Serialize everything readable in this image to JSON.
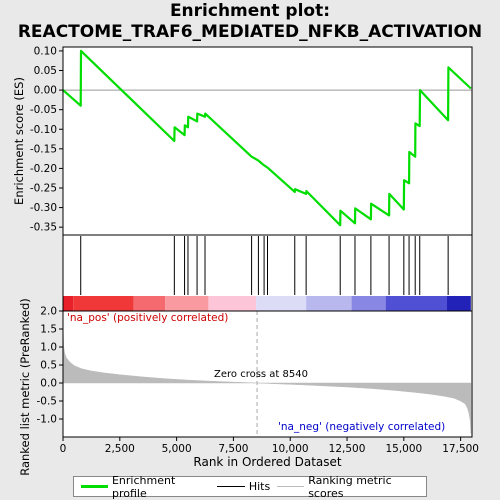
{
  "title_line1": "Enrichment plot:",
  "title_line2": "REACTOME_TRAF6_MEDIATED_NFKB_ACTIVATION",
  "chart_data": {
    "type": "line",
    "x_range": [
      0,
      18000
    ],
    "xlabel": "Rank in Ordered Dataset",
    "x_ticks": [
      0,
      2500,
      5000,
      7500,
      10000,
      12500,
      15000,
      17500
    ],
    "top_panel": {
      "ylabel": "Enrichment score (ES)",
      "ylim": [
        -0.37,
        0.11
      ],
      "y_ticks": [
        0.1,
        0.05,
        0.0,
        -0.05,
        -0.1,
        -0.15,
        -0.2,
        -0.25,
        -0.3,
        -0.35
      ],
      "series": [
        {
          "name": "Enrichment profile",
          "color": "#00dd00",
          "x": [
            0,
            780,
            790,
            4900,
            4910,
            5350,
            5360,
            5500,
            5510,
            5900,
            5910,
            6250,
            6260,
            8300,
            8600,
            8800,
            9000,
            10200,
            10210,
            10700,
            10710,
            12200,
            12210,
            12850,
            12860,
            13550,
            13560,
            14350,
            14360,
            15000,
            15010,
            15230,
            15240,
            15500,
            15510,
            15700,
            15710,
            16950,
            16960,
            17950
          ],
          "y": [
            0.0,
            -0.04,
            0.1,
            -0.13,
            -0.095,
            -0.115,
            -0.09,
            -0.095,
            -0.068,
            -0.08,
            -0.06,
            -0.068,
            -0.06,
            -0.17,
            -0.18,
            -0.19,
            -0.198,
            -0.26,
            -0.253,
            -0.265,
            -0.258,
            -0.345,
            -0.308,
            -0.34,
            -0.302,
            -0.33,
            -0.29,
            -0.32,
            -0.265,
            -0.305,
            -0.23,
            -0.238,
            -0.158,
            -0.17,
            -0.085,
            -0.092,
            0.0,
            -0.077,
            0.058,
            0.004
          ]
        }
      ]
    },
    "hits": [
      780,
      4900,
      5350,
      5500,
      5900,
      6250,
      8300,
      8600,
      8850,
      9000,
      10200,
      10700,
      12200,
      12850,
      13550,
      14350,
      15000,
      15230,
      15500,
      15700,
      16950
    ],
    "heat_bar": {
      "segments": [
        {
          "x0": 0,
          "x1": 450,
          "color": "#e8202a"
        },
        {
          "x0": 450,
          "x1": 3100,
          "color": "#f03838"
        },
        {
          "x0": 3100,
          "x1": 4500,
          "color": "#f46a6e"
        },
        {
          "x0": 4500,
          "x1": 6400,
          "color": "#f89aa0"
        },
        {
          "x0": 6400,
          "x1": 8500,
          "color": "#fcc6d8"
        },
        {
          "x0": 8500,
          "x1": 10700,
          "color": "#dcdcf6"
        },
        {
          "x0": 10700,
          "x1": 12700,
          "color": "#b8b8ee"
        },
        {
          "x0": 12700,
          "x1": 14200,
          "color": "#8888e4"
        },
        {
          "x0": 14200,
          "x1": 16900,
          "color": "#5050d4"
        },
        {
          "x0": 16900,
          "x1": 17950,
          "color": "#2222b8"
        }
      ]
    },
    "bottom_panel": {
      "ylabel": "Ranked list metric (PreRanked)",
      "ylim": [
        -1.5,
        2.0
      ],
      "y_ticks": [
        2.0,
        1.5,
        1.0,
        0.5,
        0.0,
        -0.5,
        -1.0
      ],
      "series": [
        {
          "name": "Ranking metric scores",
          "color": "#bbbbbb",
          "x": [
            0,
            30,
            80,
            150,
            300,
            500,
            800,
            1200,
            1800,
            2500,
            3500,
            4500,
            5500,
            6500,
            7500,
            8540,
            9500,
            10500,
            11500,
            12500,
            13500,
            14500,
            15500,
            16200,
            16800,
            17200,
            17500,
            17700,
            17800,
            17870,
            17920,
            17950
          ],
          "y": [
            1.65,
            1.0,
            0.82,
            0.7,
            0.58,
            0.48,
            0.4,
            0.34,
            0.28,
            0.23,
            0.17,
            0.12,
            0.08,
            0.05,
            0.025,
            0.0,
            -0.025,
            -0.05,
            -0.08,
            -0.11,
            -0.15,
            -0.2,
            -0.26,
            -0.31,
            -0.37,
            -0.42,
            -0.5,
            -0.58,
            -0.7,
            -0.85,
            -1.05,
            -1.4
          ]
        }
      ],
      "annotations": {
        "pos_label": "'na_pos' (positively correlated)",
        "neg_label": "'na_neg' (negatively correlated)",
        "zero_cross": "Zero cross at 8540",
        "zero_cross_x": 8540
      }
    },
    "legend": [
      {
        "label": "Enrichment profile",
        "color": "#00dd00"
      },
      {
        "label": "Hits",
        "color": "#000000"
      },
      {
        "label": "Ranking metric scores",
        "color": "#bbbbbb"
      }
    ]
  }
}
